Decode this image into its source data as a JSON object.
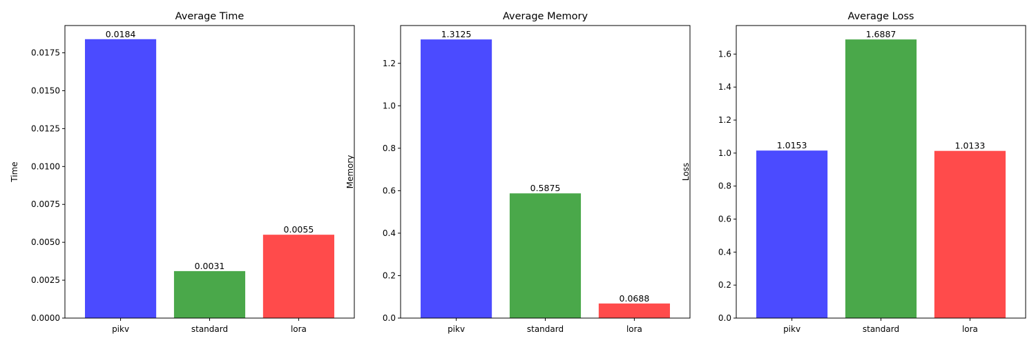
{
  "chart_data": [
    {
      "type": "bar",
      "title": "Average Time",
      "xlabel": "",
      "ylabel": "Time",
      "categories": [
        "pikv",
        "standard",
        "lora"
      ],
      "values": [
        0.0184,
        0.0031,
        0.0055
      ],
      "data_labels": [
        "0.0184",
        "0.0031",
        "0.0055"
      ],
      "ylim": [
        0,
        0.0193
      ],
      "yticks": [
        0.0,
        0.0025,
        0.005,
        0.0075,
        0.01,
        0.0125,
        0.015,
        0.0175
      ],
      "ytick_labels": [
        "0.0000",
        "0.0025",
        "0.0050",
        "0.0075",
        "0.0100",
        "0.0125",
        "0.0150",
        "0.0175"
      ],
      "colors": [
        "#4b4bff",
        "#4aa84a",
        "#ff4b4b"
      ],
      "grid": false,
      "legend": "none"
    },
    {
      "type": "bar",
      "title": "Average Memory",
      "xlabel": "",
      "ylabel": "Memory",
      "categories": [
        "pikv",
        "standard",
        "lora"
      ],
      "values": [
        1.3125,
        0.5875,
        0.0688
      ],
      "data_labels": [
        "1.3125",
        "0.5875",
        "0.0688"
      ],
      "ylim": [
        0,
        1.378
      ],
      "yticks": [
        0.0,
        0.2,
        0.4,
        0.6,
        0.8,
        1.0,
        1.2
      ],
      "ytick_labels": [
        "0.0",
        "0.2",
        "0.4",
        "0.6",
        "0.8",
        "1.0",
        "1.2"
      ],
      "colors": [
        "#4b4bff",
        "#4aa84a",
        "#ff4b4b"
      ],
      "grid": false,
      "legend": "none"
    },
    {
      "type": "bar",
      "title": "Average Loss",
      "xlabel": "",
      "ylabel": "Loss",
      "categories": [
        "pikv",
        "standard",
        "lora"
      ],
      "values": [
        1.0153,
        1.6887,
        1.0133
      ],
      "data_labels": [
        "1.0153",
        "1.6887",
        "1.0133"
      ],
      "ylim": [
        0,
        1.773
      ],
      "yticks": [
        0.0,
        0.2,
        0.4,
        0.6,
        0.8,
        1.0,
        1.2,
        1.4,
        1.6
      ],
      "ytick_labels": [
        "0.0",
        "0.2",
        "0.4",
        "0.6",
        "0.8",
        "1.0",
        "1.2",
        "1.4",
        "1.6"
      ],
      "colors": [
        "#4b4bff",
        "#4aa84a",
        "#ff4b4b"
      ],
      "grid": false,
      "legend": "none"
    }
  ]
}
